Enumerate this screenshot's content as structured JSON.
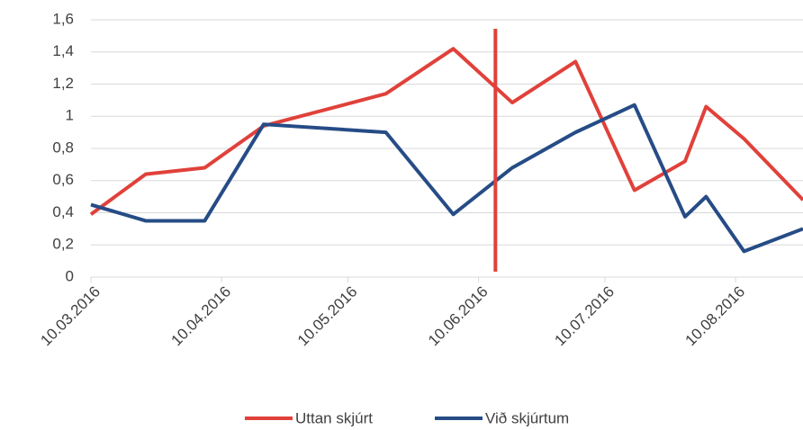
{
  "chart_data": {
    "type": "line",
    "xlim": [
      "10.03.2016",
      "26.08.2016"
    ],
    "xticks": [
      "10.03.2016",
      "10.04.2016",
      "10.05.2016",
      "10.06.2016",
      "10.07.2016",
      "10.08.2016"
    ],
    "ylim": [
      0,
      1.6
    ],
    "yticks": [
      0,
      {
        "value": 0.2,
        "label": "0,2"
      },
      {
        "value": 0.4,
        "label": "0,4"
      },
      {
        "value": 0.6,
        "label": "0,6"
      },
      {
        "value": 0.8,
        "label": "0,8"
      },
      1,
      {
        "value": 1.2,
        "label": "1,2"
      },
      {
        "value": 1.4,
        "label": "1,4"
      },
      {
        "value": 1.6,
        "label": "1,6"
      }
    ],
    "grid": true,
    "legend": "bottom",
    "x": [
      "10.03.2016",
      "23.03.2016",
      "06.04.2016",
      "20.04.2016",
      "19.05.2016",
      "04.06.2016",
      "18.06.2016",
      "03.07.2016",
      "17.07.2016",
      "29.07.2016",
      "03.08.2016",
      "12.08.2016",
      "26.08.2016"
    ],
    "series": [
      {
        "name": "Uttan skjúrt",
        "color": "#e0413a",
        "values": [
          0.39,
          0.64,
          0.68,
          0.94,
          1.14,
          1.42,
          1.085,
          1.34,
          0.54,
          0.72,
          1.06,
          0.86,
          0.48
        ]
      },
      {
        "name": "Við skjúrtum",
        "color": "#264c86",
        "values": [
          0.45,
          0.35,
          0.35,
          0.95,
          0.9,
          0.39,
          0.68,
          0.9,
          1.07,
          0.375,
          0.5,
          0.16,
          0.3
        ]
      }
    ],
    "marker_x": "14.06.2016",
    "marker_color": "#e0413a"
  }
}
